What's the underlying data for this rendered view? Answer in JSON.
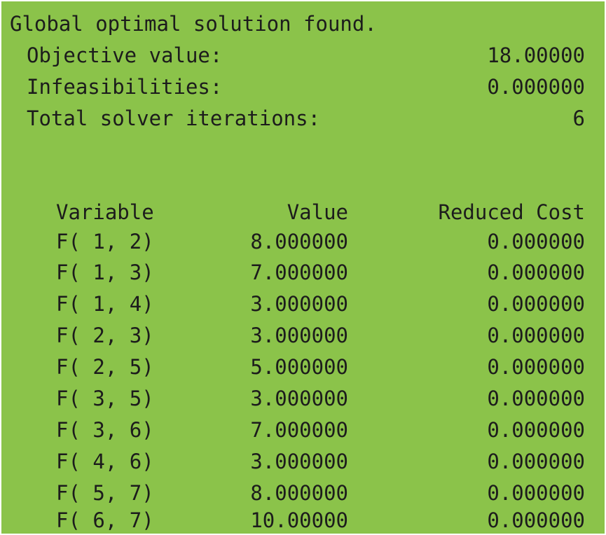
{
  "report": {
    "header": "Global optimal solution found.",
    "summary": [
      {
        "label": "Objective value:",
        "value": "18.00000"
      },
      {
        "label": "Infeasibilities:",
        "value": "0.000000"
      },
      {
        "label": "Total solver iterations:",
        "value": "6"
      }
    ],
    "table": {
      "headers": {
        "variable": "Variable",
        "value": "Value",
        "reduced_cost": "Reduced Cost"
      },
      "rows": [
        {
          "variable": "F( 1, 2)",
          "value": "8.000000",
          "reduced_cost": "0.000000"
        },
        {
          "variable": "F( 1, 3)",
          "value": "7.000000",
          "reduced_cost": "0.000000"
        },
        {
          "variable": "F( 1, 4)",
          "value": "3.000000",
          "reduced_cost": "0.000000"
        },
        {
          "variable": "F( 2, 3)",
          "value": "3.000000",
          "reduced_cost": "0.000000"
        },
        {
          "variable": "F( 2, 5)",
          "value": "5.000000",
          "reduced_cost": "0.000000"
        },
        {
          "variable": "F( 3, 5)",
          "value": "3.000000",
          "reduced_cost": "0.000000"
        },
        {
          "variable": "F( 3, 6)",
          "value": "7.000000",
          "reduced_cost": "0.000000"
        },
        {
          "variable": "F( 4, 6)",
          "value": "3.000000",
          "reduced_cost": "0.000000"
        },
        {
          "variable": "F( 5, 7)",
          "value": "8.000000",
          "reduced_cost": "0.000000"
        },
        {
          "variable": "F( 6, 7)",
          "value": "10.00000",
          "reduced_cost": "0.000000"
        }
      ]
    }
  },
  "colors": {
    "background": "#8bc34a",
    "text": "#1c1c1c",
    "border": "#ffffff"
  }
}
